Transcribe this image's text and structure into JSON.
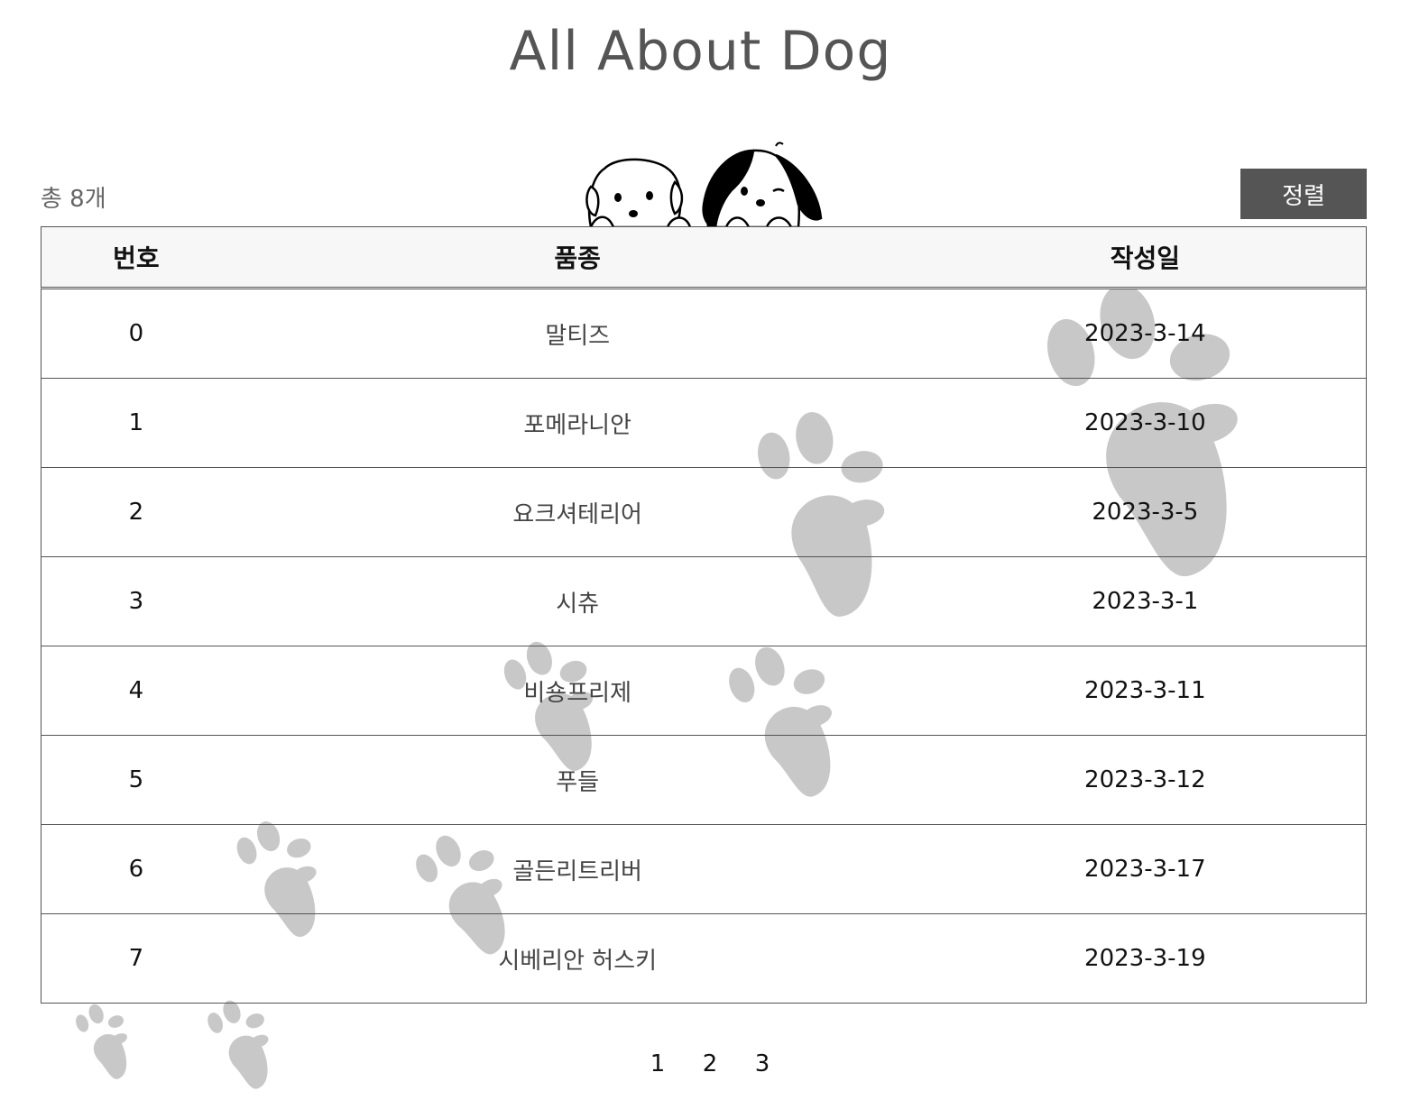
{
  "title": "All About Dog",
  "count_label": "총 8개",
  "sort_label": "정렬",
  "table": {
    "headers": [
      "번호",
      "품종",
      "작성일"
    ],
    "rows": [
      {
        "num": "0",
        "breed": "말티즈",
        "date": "2023-3-14"
      },
      {
        "num": "1",
        "breed": "포메라니안",
        "date": "2023-3-10"
      },
      {
        "num": "2",
        "breed": "요크셔테리어",
        "date": "2023-3-5"
      },
      {
        "num": "3",
        "breed": "시츄",
        "date": "2023-3-1"
      },
      {
        "num": "4",
        "breed": "비숑프리제",
        "date": "2023-3-11"
      },
      {
        "num": "5",
        "breed": "푸들",
        "date": "2023-3-12"
      },
      {
        "num": "6",
        "breed": "골든리트리버",
        "date": "2023-3-17"
      },
      {
        "num": "7",
        "breed": "시베리안 허스키",
        "date": "2023-3-19"
      }
    ]
  },
  "pagination": [
    "1",
    "2",
    "3"
  ],
  "colors": {
    "sort_button_bg": "#555555",
    "header_bg": "#f7f7f7",
    "paw": "#c8c8c8"
  }
}
